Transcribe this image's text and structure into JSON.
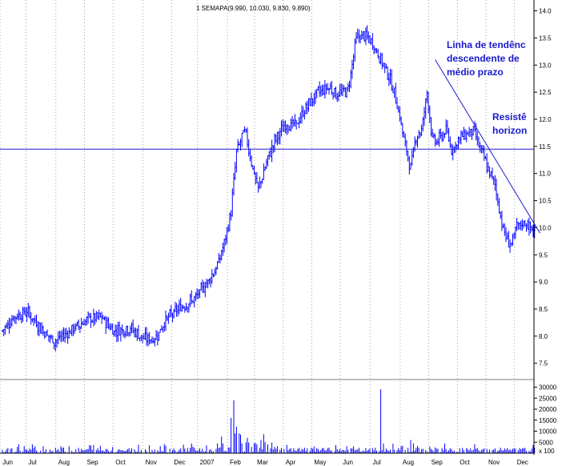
{
  "chart_data": {
    "type": "ohlc",
    "title": "1 SEMAPA(9.990, 10.030, 9.830, 9.890)",
    "x_labels": [
      {
        "label": "Jun",
        "index": 3
      },
      {
        "label": "Jul",
        "index": 22
      },
      {
        "label": "Aug",
        "index": 44
      },
      {
        "label": "Sep",
        "index": 65
      },
      {
        "label": "Oct",
        "index": 86
      },
      {
        "label": "Nov",
        "index": 108
      },
      {
        "label": "Dec",
        "index": 129
      },
      {
        "label": "2007",
        "index": 148
      },
      {
        "label": "Feb",
        "index": 170
      },
      {
        "label": "Mar",
        "index": 190
      },
      {
        "label": "Apr",
        "index": 211
      },
      {
        "label": "May",
        "index": 232
      },
      {
        "label": "Jun",
        "index": 253
      },
      {
        "label": "Jul",
        "index": 275
      },
      {
        "label": "Aug",
        "index": 297
      },
      {
        "label": "Sep",
        "index": 318
      },
      {
        "label": "Oct",
        "index": 339
      },
      {
        "label": "Nov",
        "index": 360
      },
      {
        "label": "Dec",
        "index": 381
      }
    ],
    "n_bars": 392,
    "price_axis": {
      "ylim": [
        7.2,
        14.2
      ],
      "ticks": [
        "14.0",
        "13.5",
        "13.0",
        "12.5",
        "12.0",
        "11.5",
        "11.0",
        "10.5",
        "10.0",
        "9.5",
        "9.0",
        "8.5",
        "8.0",
        "7.5"
      ]
    },
    "volume_axis": {
      "ylim": [
        0,
        32000
      ],
      "ticks": [
        "30000",
        "25000",
        "20000",
        "15000",
        "10000",
        "5000"
      ],
      "unit_label": "x 100"
    },
    "close_anchors": [
      [
        0,
        8.1
      ],
      [
        8,
        8.35
      ],
      [
        18,
        8.45
      ],
      [
        28,
        8.15
      ],
      [
        38,
        7.9
      ],
      [
        50,
        8.1
      ],
      [
        62,
        8.3
      ],
      [
        72,
        8.35
      ],
      [
        82,
        8.1
      ],
      [
        94,
        8.15
      ],
      [
        104,
        7.95
      ],
      [
        112,
        7.95
      ],
      [
        120,
        8.3
      ],
      [
        132,
        8.55
      ],
      [
        142,
        8.7
      ],
      [
        152,
        9.05
      ],
      [
        158,
        9.3
      ],
      [
        164,
        9.8
      ],
      [
        168,
        10.3
      ],
      [
        172,
        11.4
      ],
      [
        178,
        11.8
      ],
      [
        184,
        11.1
      ],
      [
        188,
        10.7
      ],
      [
        194,
        11.2
      ],
      [
        200,
        11.6
      ],
      [
        208,
        11.9
      ],
      [
        216,
        11.9
      ],
      [
        224,
        12.25
      ],
      [
        232,
        12.5
      ],
      [
        240,
        12.6
      ],
      [
        246,
        12.45
      ],
      [
        254,
        12.55
      ],
      [
        260,
        13.5
      ],
      [
        266,
        13.55
      ],
      [
        272,
        13.4
      ],
      [
        278,
        13.1
      ],
      [
        284,
        12.8
      ],
      [
        290,
        12.3
      ],
      [
        296,
        11.5
      ],
      [
        300,
        11.1
      ],
      [
        304,
        11.7
      ],
      [
        308,
        11.8
      ],
      [
        312,
        12.5
      ],
      [
        316,
        11.6
      ],
      [
        320,
        11.6
      ],
      [
        326,
        11.8
      ],
      [
        330,
        11.45
      ],
      [
        338,
        11.7
      ],
      [
        346,
        11.8
      ],
      [
        352,
        11.4
      ],
      [
        358,
        11.0
      ],
      [
        362,
        10.8
      ],
      [
        366,
        10.2
      ],
      [
        370,
        9.8
      ],
      [
        374,
        9.7
      ],
      [
        378,
        10.0
      ],
      [
        384,
        10.1
      ],
      [
        391,
        9.89
      ]
    ],
    "volume_spikes": [
      {
        "index": 170,
        "value": 24000
      },
      {
        "index": 168,
        "value": 16000
      },
      {
        "index": 172,
        "value": 12000
      },
      {
        "index": 174,
        "value": 9000
      },
      {
        "index": 180,
        "value": 7000
      },
      {
        "index": 190,
        "value": 6000
      },
      {
        "index": 278,
        "value": 29000
      },
      {
        "index": 300,
        "value": 6000
      },
      {
        "index": 302,
        "value": 4500
      }
    ],
    "annotations": [
      {
        "id": "trend",
        "lines": [
          "Linha de tendênc",
          "descendente de",
          "médio prazo"
        ]
      },
      {
        "id": "resist",
        "lines": [
          "Resistê",
          "horizon"
        ]
      }
    ],
    "horizontal_line_value": 11.45,
    "trendline": {
      "start_index": 318,
      "start_value": 13.1,
      "end_index": 395,
      "end_value": 9.9
    },
    "colors": {
      "bars": "#0000ff",
      "volume": "#0000ff",
      "guide_lines": "#1a1acd",
      "grid": "#8c8c8c",
      "annotation": "#1a1acd",
      "background": "#ffffff"
    }
  }
}
